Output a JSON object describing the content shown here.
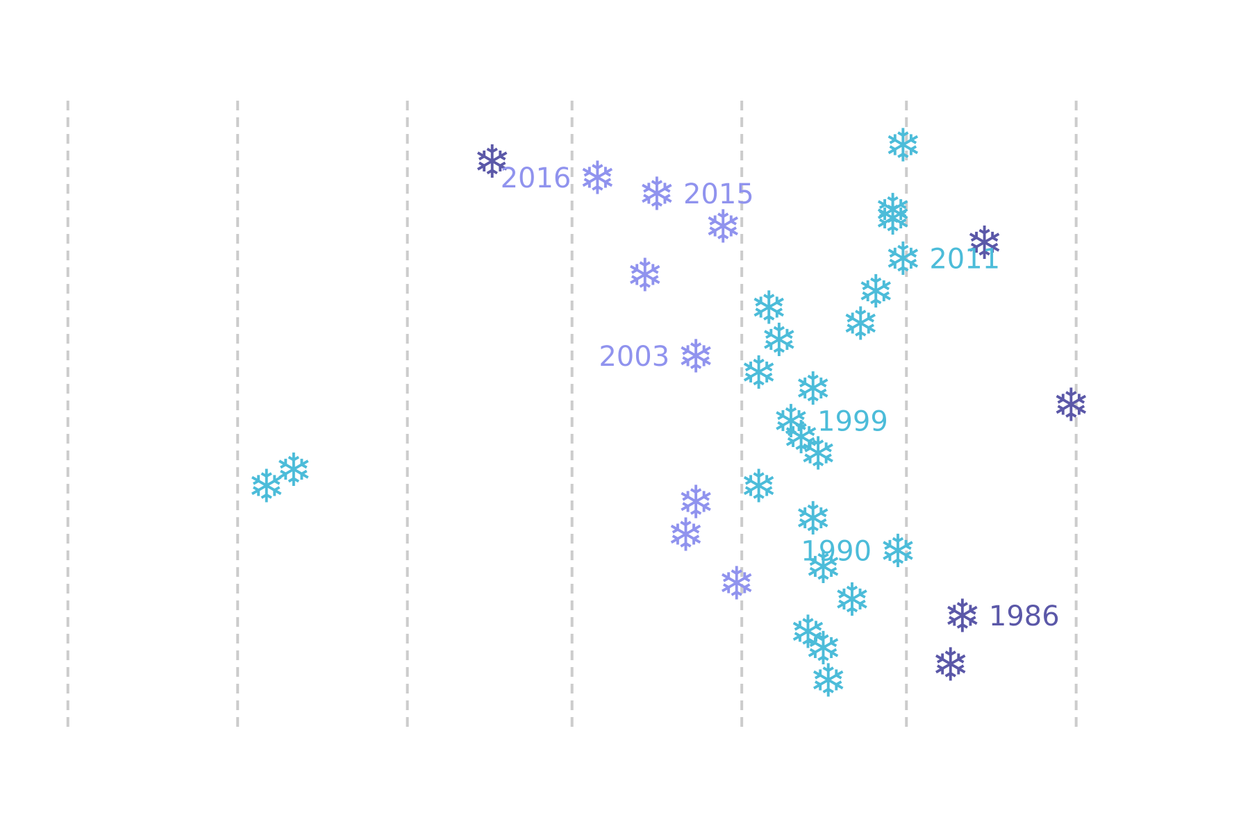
{
  "colors": {
    "dark": "#5b58a8",
    "mid": "#9093ee",
    "light": "#4cbcd9",
    "grid": "#cccccc"
  },
  "icon": "snowflake-icon",
  "chart_data": {
    "type": "scatter",
    "title": "",
    "xlabel": "",
    "ylabel": "",
    "xlim": [
      0,
      6.3
    ],
    "ylim": [
      1982.4,
      2021
    ],
    "gridlines_x": [
      0.4,
      1.4,
      2.4,
      3.37,
      4.37,
      5.34,
      6.34
    ],
    "points": [
      {
        "year": 2018,
        "x": 5.32,
        "group": "light"
      },
      {
        "year": 2017,
        "x": 2.9,
        "group": "dark"
      },
      {
        "year": 2016,
        "x": 3.52,
        "group": "mid",
        "label": "2016",
        "label_side": "left"
      },
      {
        "year": 2015,
        "x": 3.87,
        "group": "mid",
        "label": "2015",
        "label_side": "right"
      },
      {
        "year": 2014,
        "x": 5.26,
        "group": "light"
      },
      {
        "year": 2013.5,
        "x": 5.26,
        "group": "light"
      },
      {
        "year": 2013,
        "x": 4.26,
        "group": "mid"
      },
      {
        "year": 2012,
        "x": 5.8,
        "group": "dark"
      },
      {
        "year": 2011,
        "x": 5.32,
        "group": "light",
        "label": "2011",
        "label_side": "right"
      },
      {
        "year": 2010,
        "x": 3.8,
        "group": "mid"
      },
      {
        "year": 2009,
        "x": 5.16,
        "group": "light"
      },
      {
        "year": 2008,
        "x": 4.53,
        "group": "light"
      },
      {
        "year": 2007,
        "x": 5.07,
        "group": "light"
      },
      {
        "year": 2006,
        "x": 4.59,
        "group": "light"
      },
      {
        "year": 2005,
        "x": 4.1,
        "group": "mid",
        "label": "2003",
        "label_side": "left"
      },
      {
        "year": 2004,
        "x": 4.47,
        "group": "light"
      },
      {
        "year": 2003,
        "x": 4.79,
        "group": "light"
      },
      {
        "year": 2002,
        "x": 6.31,
        "group": "dark"
      },
      {
        "year": 2001,
        "x": 4.66,
        "group": "light",
        "label": "1999",
        "label_side": "right"
      },
      {
        "year": 2000,
        "x": 4.72,
        "group": "light"
      },
      {
        "year": 1999,
        "x": 4.82,
        "group": "light"
      },
      {
        "year": 1998,
        "x": 1.73,
        "group": "light"
      },
      {
        "year": 1997,
        "x": 1.57,
        "group": "light"
      },
      {
        "year": 1997,
        "x": 4.47,
        "group": "light"
      },
      {
        "year": 1996,
        "x": 4.1,
        "group": "mid"
      },
      {
        "year": 1995,
        "x": 4.79,
        "group": "light"
      },
      {
        "year": 1994,
        "x": 4.04,
        "group": "mid"
      },
      {
        "year": 1993,
        "x": 5.29,
        "group": "light",
        "label": "1990",
        "label_side": "left"
      },
      {
        "year": 1992,
        "x": 4.85,
        "group": "light"
      },
      {
        "year": 1991,
        "x": 4.34,
        "group": "mid"
      },
      {
        "year": 1990,
        "x": 5.02,
        "group": "light"
      },
      {
        "year": 1989,
        "x": 5.67,
        "group": "dark",
        "label": "1986",
        "label_side": "right"
      },
      {
        "year": 1988,
        "x": 4.76,
        "group": "light"
      },
      {
        "year": 1987,
        "x": 4.85,
        "group": "light"
      },
      {
        "year": 1986,
        "x": 5.6,
        "group": "dark"
      },
      {
        "year": 1985,
        "x": 4.88,
        "group": "light"
      }
    ]
  }
}
